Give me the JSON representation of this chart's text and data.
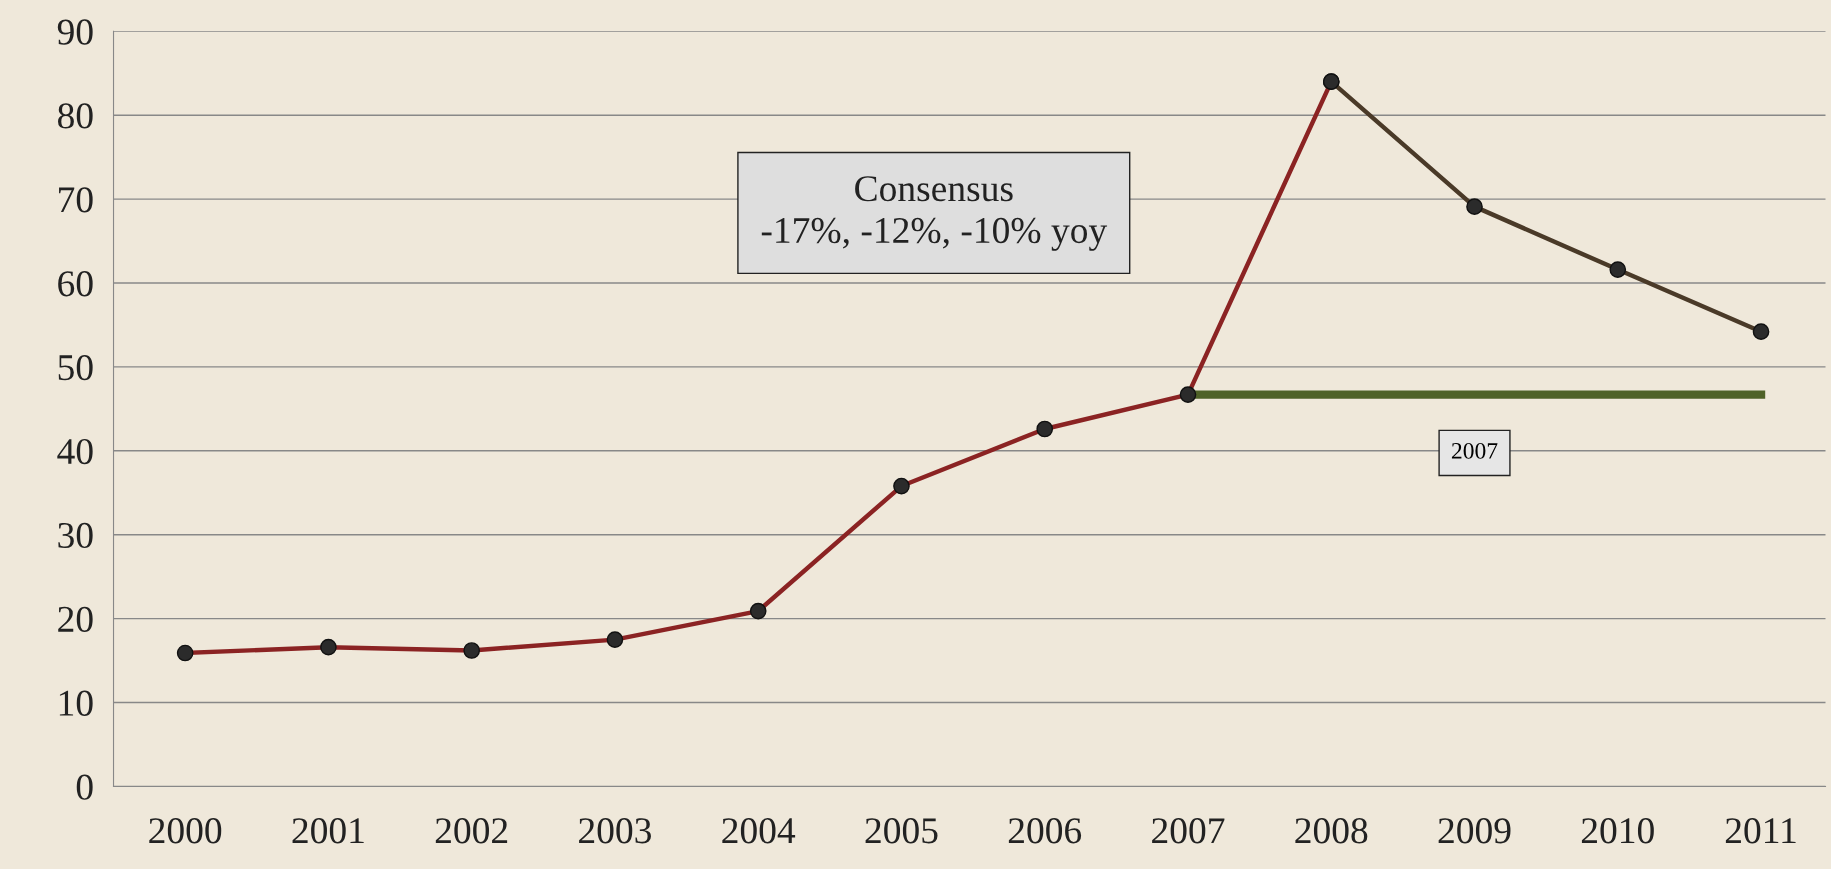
{
  "chart_data": {
    "type": "line",
    "categories": [
      "2000",
      "2001",
      "2002",
      "2003",
      "2004",
      "2005",
      "2006",
      "2007",
      "2008",
      "2009",
      "2010",
      "2011"
    ],
    "series": [
      {
        "color": "#8b2323",
        "values": [
          15.9,
          16.6,
          16.2,
          17.5,
          20.9,
          35.8,
          42.6,
          46.7,
          84.0,
          null,
          null,
          null
        ]
      },
      {
        "color": "#4a3a28",
        "values": [
          null,
          null,
          null,
          null,
          null,
          null,
          null,
          null,
          84.0,
          69.1,
          61.6,
          54.2
        ]
      },
      {
        "name": "2007",
        "color": "#4f6228",
        "marker": "none",
        "values": [
          null,
          null,
          null,
          null,
          null,
          null,
          null,
          46.7,
          46.7,
          46.7,
          46.7,
          46.7
        ]
      }
    ],
    "ylim": [
      0,
      90
    ],
    "yticks": [
      0,
      10,
      20,
      30,
      40,
      50,
      60,
      70,
      80,
      90
    ],
    "grid": "y",
    "marker": "circle",
    "line_style": "solid",
    "legend": false,
    "annotations": [
      "Consensus\n-17%, -12%, -10% yoy"
    ]
  }
}
